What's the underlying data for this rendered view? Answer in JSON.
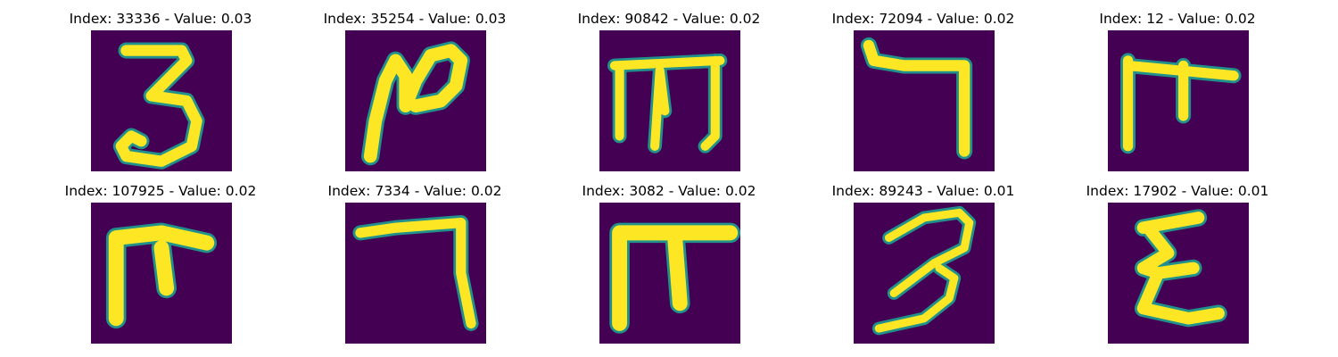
{
  "panels": [
    {
      "title": "Index: 33336 - Value: 0.03",
      "glyph": "three"
    },
    {
      "title": "Index: 35254 - Value: 0.03",
      "glyph": "loop-n"
    },
    {
      "title": "Index: 90842 - Value: 0.02",
      "glyph": "m-bar"
    },
    {
      "title": "Index: 72094 - Value: 0.02",
      "glyph": "seven"
    },
    {
      "title": "Index: 12 - Value: 0.02",
      "glyph": "pi-small"
    },
    {
      "title": "Index: 107925 - Value: 0.02",
      "glyph": "pi-hook"
    },
    {
      "title": "Index: 7334 - Value: 0.02",
      "glyph": "seven"
    },
    {
      "title": "Index: 3082 - Value: 0.02",
      "glyph": "pi-wide"
    },
    {
      "title": "Index: 89243 - Value: 0.01",
      "glyph": "three-slant"
    },
    {
      "title": "Index: 17902 - Value: 0.01",
      "glyph": "epsilon"
    }
  ],
  "colors": {
    "background": "#440154",
    "stroke": "#fde725",
    "edge": "#21918c"
  }
}
